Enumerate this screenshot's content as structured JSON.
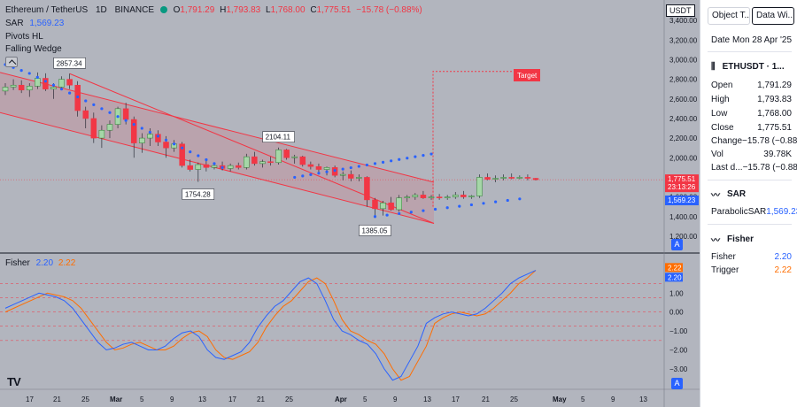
{
  "header": {
    "symbol": "Ethereum / TetherUS",
    "interval": "1D",
    "exchange": "BINANCE",
    "ohlc": {
      "o_label": "O",
      "o": "1,791.29",
      "h_label": "H",
      "h": "1,793.83",
      "l_label": "L",
      "l": "1,768.00",
      "c_label": "C",
      "c": "1,775.51",
      "change": "−15.78 (−0.88%)"
    }
  },
  "indicators": {
    "sar_label": "SAR",
    "sar_value": "1,569.23",
    "pivots_label": "Pivots HL",
    "wedge_label": "Falling Wedge"
  },
  "fisher": {
    "label": "Fisher",
    "v1": "2.20",
    "v2": "2.22"
  },
  "currency_badge": "USDT",
  "scale_btn": "A",
  "price_labels": {
    "last": "1,775.51",
    "countdown": "23:13:26",
    "sar": "1,569.23",
    "fisher_top": "2.22",
    "fisher_bot": "2.20"
  },
  "annotations": {
    "p1": "2857.34",
    "p2": "1754.28",
    "p3": "2104.11",
    "p4": "1385.05",
    "target": "Target"
  },
  "price_axis": [
    "3,400.00",
    "3,200.00",
    "3,000.00",
    "2,800.00",
    "2,600.00",
    "2,400.00",
    "2,200.00",
    "2,000.00",
    "1,800.00",
    "1,600.00",
    "1,400.00",
    "1,200.00"
  ],
  "fisher_axis": [
    "1.00",
    "0.00",
    "−1.00",
    "−2.00",
    "−3.00"
  ],
  "time_axis": [
    "17",
    "21",
    "25",
    "Mar",
    "5",
    "9",
    "13",
    "17",
    "21",
    "25",
    "Apr",
    "5",
    "9",
    "13",
    "17",
    "21",
    "25",
    "May",
    "5",
    "9",
    "13"
  ],
  "colors": {
    "up": "#089981",
    "down": "#f23645",
    "sar": "#2962ff",
    "fisher": "#2962ff",
    "trigger": "#ff6d00",
    "wedge": "#f23645"
  },
  "panel": {
    "tab1": "Object T...",
    "tab2": "Data Wi...",
    "date_label": "Date",
    "date_value": "Mon 28 Apr '25",
    "symbol_title": "ETHUSDT · 1...",
    "rows": [
      {
        "k": "Open",
        "v": "1,791.29"
      },
      {
        "k": "High",
        "v": "1,793.83"
      },
      {
        "k": "Low",
        "v": "1,768.00"
      },
      {
        "k": "Close",
        "v": "1,775.51"
      },
      {
        "k": "Change",
        "v": "−15.78 (−0.88%)"
      },
      {
        "k": "Vol",
        "v": "39.78K"
      },
      {
        "k": "Last d...",
        "v": "−15.78 (−0.88%)"
      }
    ],
    "sar_title": "SAR",
    "sar_row": {
      "k": "ParabolicSAR",
      "v": "1,569.23"
    },
    "fisher_title": "Fisher",
    "fisher_rows": [
      {
        "k": "Fisher",
        "v": "2.20"
      },
      {
        "k": "Trigger",
        "v": "2.22"
      }
    ]
  },
  "chart_data": {
    "type": "candlestick",
    "price_axis_range": [
      1100,
      3500
    ],
    "candles": [
      [
        2680,
        2760,
        2640,
        2720
      ],
      [
        2720,
        2800,
        2690,
        2740
      ],
      [
        2740,
        2790,
        2660,
        2690
      ],
      [
        2690,
        2760,
        2620,
        2730
      ],
      [
        2730,
        2870,
        2700,
        2810
      ],
      [
        2810,
        2860,
        2680,
        2700
      ],
      [
        2700,
        2760,
        2600,
        2720
      ],
      [
        2720,
        2830,
        2700,
        2800
      ],
      [
        2800,
        2857,
        2700,
        2740
      ],
      [
        2740,
        2780,
        2420,
        2480
      ],
      [
        2480,
        2520,
        2300,
        2400
      ],
      [
        2400,
        2460,
        2150,
        2200
      ],
      [
        2200,
        2330,
        2100,
        2280
      ],
      [
        2280,
        2380,
        2200,
        2340
      ],
      [
        2340,
        2520,
        2300,
        2500
      ],
      [
        2500,
        2560,
        2340,
        2390
      ],
      [
        2390,
        2420,
        2000,
        2150
      ],
      [
        2150,
        2250,
        2050,
        2200
      ],
      [
        2200,
        2300,
        2120,
        2240
      ],
      [
        2240,
        2280,
        2120,
        2160
      ],
      [
        2160,
        2220,
        2000,
        2100
      ],
      [
        2100,
        2180,
        2060,
        2140
      ],
      [
        2140,
        2160,
        1900,
        1920
      ],
      [
        1920,
        1980,
        1860,
        1880
      ],
      [
        1880,
        1950,
        1754,
        1930
      ],
      [
        1930,
        1970,
        1860,
        1900
      ],
      [
        1900,
        1950,
        1880,
        1920
      ],
      [
        1920,
        1960,
        1870,
        1890
      ],
      [
        1890,
        1940,
        1860,
        1920
      ],
      [
        1920,
        1950,
        1880,
        1900
      ],
      [
        1900,
        2040,
        1880,
        2010
      ],
      [
        2010,
        2060,
        1920,
        1940
      ],
      [
        1940,
        1980,
        1900,
        1960
      ],
      [
        1960,
        2010,
        1920,
        1950
      ],
      [
        1950,
        2104,
        1930,
        2080
      ],
      [
        2080,
        2090,
        1980,
        2000
      ],
      [
        2000,
        2030,
        1940,
        2010
      ],
      [
        2010,
        2020,
        1910,
        1930
      ],
      [
        1930,
        1960,
        1880,
        1910
      ],
      [
        1910,
        1940,
        1840,
        1880
      ],
      [
        1880,
        1910,
        1820,
        1900
      ],
      [
        1900,
        1920,
        1800,
        1820
      ],
      [
        1820,
        1860,
        1770,
        1830
      ],
      [
        1830,
        1870,
        1760,
        1790
      ],
      [
        1790,
        1830,
        1760,
        1800
      ],
      [
        1800,
        1810,
        1500,
        1570
      ],
      [
        1570,
        1590,
        1385,
        1480
      ],
      [
        1480,
        1560,
        1410,
        1540
      ],
      [
        1540,
        1600,
        1460,
        1470
      ],
      [
        1470,
        1620,
        1450,
        1590
      ],
      [
        1590,
        1620,
        1550,
        1600
      ],
      [
        1600,
        1640,
        1570,
        1620
      ],
      [
        1620,
        1660,
        1580,
        1590
      ],
      [
        1590,
        1620,
        1570,
        1600
      ],
      [
        1600,
        1630,
        1570,
        1590
      ],
      [
        1590,
        1620,
        1570,
        1600
      ],
      [
        1600,
        1650,
        1580,
        1620
      ],
      [
        1620,
        1660,
        1580,
        1600
      ],
      [
        1600,
        1620,
        1580,
        1610
      ],
      [
        1610,
        1830,
        1590,
        1800
      ],
      [
        1800,
        1840,
        1770,
        1780
      ],
      [
        1780,
        1820,
        1750,
        1790
      ],
      [
        1790,
        1830,
        1770,
        1800
      ],
      [
        1800,
        1840,
        1780,
        1790
      ],
      [
        1790,
        1820,
        1780,
        1800
      ],
      [
        1800,
        1830,
        1770,
        1790
      ],
      [
        1790,
        1793.83,
        1768,
        1775.51
      ]
    ],
    "sar": [
      2950,
      2920,
      2890,
      2860,
      2820,
      2780,
      2740,
      2700,
      2660,
      2620,
      2580,
      2540,
      2500,
      2460,
      2420,
      2380,
      2340,
      2300,
      2260,
      2220,
      2180,
      2140,
      2100,
      2060,
      2020,
      1980,
      1940,
      1900,
      1870,
      1860,
      1850,
      1860,
      1870,
      1880,
      1890,
      1900,
      1910,
      1920,
      1930,
      1940,
      1950,
      1960,
      1970,
      1980,
      1990,
      2000,
      2010,
      2020,
      2030,
      2050,
      2070,
      2090,
      2110,
      2130,
      2150,
      2170,
      2190,
      2210,
      2230
    ],
    "fisher": [
      0.2,
      0.4,
      0.6,
      0.8,
      1.0,
      0.9,
      0.8,
      0.6,
      0.2,
      -0.4,
      -1.0,
      -1.6,
      -2.0,
      -1.9,
      -1.7,
      -1.6,
      -1.8,
      -2.0,
      -2.0,
      -1.8,
      -1.4,
      -1.1,
      -1.0,
      -1.3,
      -2.0,
      -2.4,
      -2.5,
      -2.3,
      -2.1,
      -1.6,
      -0.8,
      -0.2,
      0.3,
      0.6,
      1.1,
      1.6,
      1.8,
      1.5,
      0.6,
      -0.4,
      -1.0,
      -1.2,
      -1.5,
      -1.7,
      -2.2,
      -3.0,
      -3.6,
      -3.4,
      -2.6,
      -1.8,
      -0.6,
      -0.3,
      -0.1,
      0.0,
      -0.1,
      -0.2,
      -0.1,
      0.2,
      0.6,
      1.0,
      1.5,
      1.8,
      2.0,
      2.2
    ],
    "trigger": [
      0.0,
      0.2,
      0.4,
      0.6,
      0.8,
      1.0,
      0.9,
      0.8,
      0.6,
      0.2,
      -0.4,
      -1.0,
      -1.6,
      -2.0,
      -1.9,
      -1.7,
      -1.6,
      -1.8,
      -2.0,
      -2.0,
      -1.8,
      -1.4,
      -1.1,
      -1.0,
      -1.3,
      -2.0,
      -2.4,
      -2.5,
      -2.3,
      -2.1,
      -1.6,
      -0.8,
      -0.2,
      0.3,
      0.6,
      1.1,
      1.6,
      1.8,
      1.5,
      0.6,
      -0.4,
      -1.0,
      -1.2,
      -1.5,
      -1.7,
      -2.2,
      -3.0,
      -3.6,
      -3.4,
      -2.6,
      -1.8,
      -0.6,
      -0.3,
      -0.1,
      0.0,
      -0.1,
      -0.2,
      -0.1,
      0.2,
      0.6,
      1.0,
      1.5,
      1.8,
      2.2
    ],
    "fisher_axis_range": [
      -3.8,
      2.6
    ],
    "fisher_levels": [
      1.5,
      0.75,
      0,
      -0.75,
      -1.5
    ]
  }
}
